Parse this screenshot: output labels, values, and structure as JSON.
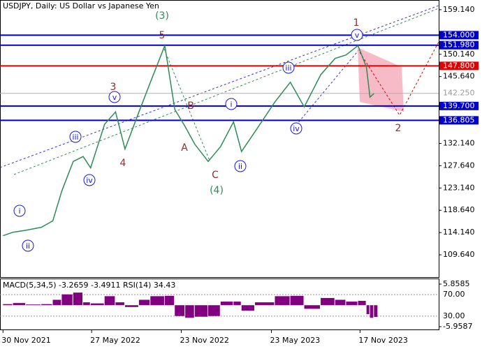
{
  "chart_data": {
    "type": "line",
    "title": "USDJPY, Daily:  US Dollar vs Japanese Yen",
    "color": "#2e8b57",
    "x": [
      "2021-11-30",
      "2021-12-20",
      "2022-01-15",
      "2022-02-15",
      "2022-03-10",
      "2022-03-28",
      "2022-04-20",
      "2022-05-10",
      "2022-05-25",
      "2022-06-22",
      "2022-07-14",
      "2022-08-02",
      "2022-08-30",
      "2022-09-22",
      "2022-10-21",
      "2022-11-10",
      "2022-12-01",
      "2022-12-20",
      "2023-01-16",
      "2023-02-10",
      "2023-03-08",
      "2023-03-24",
      "2023-04-20",
      "2023-05-30",
      "2023-06-30",
      "2023-07-28",
      "2023-08-30",
      "2023-09-28",
      "2023-10-20",
      "2023-11-13",
      "2023-11-30",
      "2023-12-07",
      "2023-12-15"
    ],
    "values": [
      113.5,
      114.2,
      114.6,
      115.2,
      116.5,
      122.5,
      128.5,
      129.5,
      127.2,
      136.0,
      138.5,
      131.0,
      138.5,
      144.5,
      151.9,
      139.0,
      135.5,
      132.0,
      128.5,
      131.5,
      136.5,
      130.5,
      134.5,
      140.5,
      144.5,
      139.5,
      146.0,
      149.3,
      150.0,
      151.9,
      147.5,
      141.5,
      142.2
    ],
    "xlim": [
      "2021-11-24",
      "2024-04-23"
    ],
    "xticks": [
      {
        "value": "2021-11-30",
        "label": "30 Nov 2021"
      },
      {
        "value": "2022-05-27",
        "label": "27 May 2022"
      },
      {
        "value": "2022-11-23",
        "label": "23 Nov 2022"
      },
      {
        "value": "2023-05-23",
        "label": "23 May 2023"
      },
      {
        "value": "2023-11-17",
        "label": "17 Nov 2023"
      }
    ],
    "ylim": [
      105.0,
      161.1
    ],
    "yticks": [
      {
        "value": 159.14,
        "label": "159.140"
      },
      {
        "value": 150.14,
        "label": "150.140"
      },
      {
        "value": 145.64,
        "label": "145.640"
      },
      {
        "value": 132.14,
        "label": "132.140"
      },
      {
        "value": 127.64,
        "label": "127.640"
      },
      {
        "value": 123.14,
        "label": "123.140"
      },
      {
        "value": 118.64,
        "label": "118.640"
      },
      {
        "value": 114.14,
        "label": "114.140"
      },
      {
        "value": 109.64,
        "label": "109.640"
      }
    ],
    "levels": [
      {
        "value": 154.0,
        "label": "154.000",
        "color": "#0000cd"
      },
      {
        "value": 151.98,
        "label": "151.980",
        "color": "#0000cd"
      },
      {
        "value": 147.8,
        "label": "147.800",
        "color": "#e00000"
      },
      {
        "value": 142.25,
        "label": "142.250",
        "color": "#b0b0b0"
      },
      {
        "value": 139.7,
        "label": "139.700",
        "color": "#0000cd"
      },
      {
        "value": 136.805,
        "label": "136.805",
        "color": "#0000cd"
      }
    ],
    "annotations": [
      "(3)",
      "5",
      "3",
      "4",
      "1",
      "2",
      "A",
      "B",
      "C",
      "(4)",
      "i",
      "ii",
      "iii",
      "iv",
      "v",
      "i",
      "ii",
      "iii",
      "iv",
      "v"
    ],
    "indicator": {
      "title": "MACD(5,34,5) -3.2659 -3.4911 RSI(14) 34.43",
      "color": "#800080",
      "values": [
        0.3,
        0.6,
        0.2,
        0.3,
        1.5,
        3.0,
        3.5,
        0.8,
        0.5,
        2.5,
        0.8,
        -0.5,
        1.5,
        2.5,
        2.6,
        -3.0,
        -3.5,
        -3.2,
        -3.0,
        1.0,
        1.0,
        -1.5,
        0.8,
        2.5,
        2.6,
        -1.0,
        2.0,
        1.5,
        1.0,
        1.2,
        -2.5,
        -3.5,
        -3.2659
      ],
      "ylim": [
        -5.9587,
        5.8585
      ],
      "yticks": [
        {
          "value": 5.8585,
          "label": "5.8585"
        },
        {
          "value": -5.9587,
          "label": "-5.9587"
        }
      ],
      "rsi_lim": [
        0,
        100
      ],
      "rsi_ticks": [
        {
          "value": 70,
          "label": "70.00"
        },
        {
          "value": 30,
          "label": "30.00"
        }
      ]
    }
  }
}
